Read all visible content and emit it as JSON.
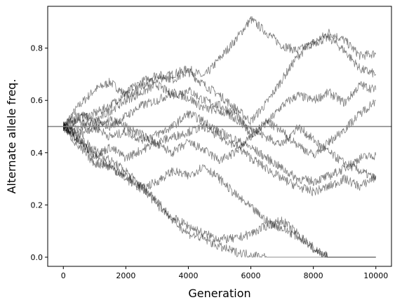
{
  "chart_data": {
    "type": "line",
    "title": "",
    "xlabel": "Generation",
    "ylabel": "Alternate allele freq.",
    "xlim": [
      -500,
      10500
    ],
    "ylim": [
      -0.035,
      0.96
    ],
    "xticks": [
      0,
      2000,
      4000,
      6000,
      8000,
      10000
    ],
    "xtick_labels": [
      "0",
      "2000",
      "4000",
      "6000",
      "8000",
      "10000"
    ],
    "yticks": [
      0.0,
      0.2,
      0.4,
      0.6,
      0.8
    ],
    "ytick_labels": [
      "0.0",
      "0.2",
      "0.4",
      "0.6",
      "0.8"
    ],
    "grid": false,
    "legend": "none",
    "reference_line": {
      "y": 0.5,
      "color": "#808080"
    },
    "series_color": "#000000",
    "series_opacity": 0.5,
    "series": [
      {
        "x": [
          0,
          500,
          1000,
          1500,
          2000,
          2500,
          3000,
          3500,
          4000,
          4500,
          5000,
          5500,
          6000,
          6500,
          7000,
          7500,
          8000,
          8500,
          9000,
          9500,
          10000
        ],
        "values": [
          0.5,
          0.58,
          0.64,
          0.67,
          0.62,
          0.65,
          0.68,
          0.7,
          0.72,
          0.69,
          0.76,
          0.83,
          0.91,
          0.86,
          0.81,
          0.79,
          0.82,
          0.86,
          0.83,
          0.77,
          0.78
        ]
      },
      {
        "x": [
          0,
          500,
          1000,
          1500,
          2000,
          2500,
          3000,
          3500,
          4000,
          4500,
          5000,
          5500,
          6000,
          6500,
          7000,
          7500,
          8000,
          8500,
          9000,
          9500,
          10000
        ],
        "values": [
          0.5,
          0.53,
          0.55,
          0.58,
          0.63,
          0.67,
          0.7,
          0.68,
          0.71,
          0.66,
          0.62,
          0.57,
          0.52,
          0.59,
          0.68,
          0.77,
          0.82,
          0.84,
          0.79,
          0.72,
          0.7
        ]
      },
      {
        "x": [
          0,
          500,
          1000,
          1500,
          2000,
          2500,
          3000,
          3500,
          4000,
          4500,
          5000,
          5500,
          6000,
          6500,
          7000,
          7500,
          8000,
          8500,
          9000,
          9500,
          10000
        ],
        "values": [
          0.5,
          0.55,
          0.52,
          0.56,
          0.6,
          0.63,
          0.66,
          0.62,
          0.64,
          0.6,
          0.58,
          0.55,
          0.47,
          0.51,
          0.58,
          0.62,
          0.6,
          0.63,
          0.59,
          0.66,
          0.64
        ]
      },
      {
        "x": [
          0,
          500,
          1000,
          1500,
          2000,
          2500,
          3000,
          3500,
          4000,
          4500,
          5000,
          5500,
          6000,
          6500,
          7000,
          7500,
          8000,
          8500,
          9000,
          9500,
          10000
        ],
        "values": [
          0.5,
          0.49,
          0.52,
          0.5,
          0.54,
          0.58,
          0.6,
          0.63,
          0.61,
          0.57,
          0.56,
          0.53,
          0.49,
          0.46,
          0.43,
          0.5,
          0.45,
          0.4,
          0.36,
          0.33,
          0.3
        ]
      },
      {
        "x": [
          0,
          500,
          1000,
          1500,
          2000,
          2500,
          3000,
          3500,
          4000,
          4500,
          5000,
          5500,
          6000,
          6500,
          7000,
          7500,
          8000,
          8500,
          9000,
          9500,
          10000
        ],
        "values": [
          0.5,
          0.47,
          0.5,
          0.46,
          0.48,
          0.45,
          0.47,
          0.5,
          0.55,
          0.52,
          0.48,
          0.45,
          0.42,
          0.38,
          0.34,
          0.3,
          0.29,
          0.31,
          0.34,
          0.38,
          0.39
        ]
      },
      {
        "x": [
          0,
          500,
          1000,
          1500,
          2000,
          2500,
          3000,
          3500,
          4000,
          4500,
          5000,
          5500,
          6000,
          6500,
          7000,
          7500,
          8000,
          8500,
          9000,
          9500,
          10000
        ],
        "values": [
          0.5,
          0.44,
          0.39,
          0.42,
          0.38,
          0.41,
          0.44,
          0.46,
          0.48,
          0.5,
          0.46,
          0.43,
          0.38,
          0.34,
          0.3,
          0.27,
          0.25,
          0.27,
          0.3,
          0.27,
          0.31
        ]
      },
      {
        "x": [
          0,
          500,
          1000,
          1500,
          2000,
          2500,
          3000,
          3500,
          4000,
          4500,
          5000,
          5500,
          6000,
          6500,
          7000,
          7500,
          8000,
          8500,
          9000,
          9500,
          10000
        ],
        "values": [
          0.5,
          0.42,
          0.36,
          0.35,
          0.3,
          0.26,
          0.29,
          0.33,
          0.31,
          0.35,
          0.3,
          0.24,
          0.19,
          0.14,
          0.11,
          0.08,
          0.04,
          0.0,
          0.0,
          0.0,
          0.0
        ]
      },
      {
        "x": [
          0,
          500,
          1000,
          1500,
          2000,
          2500,
          3000,
          3500,
          4000,
          4500,
          5000,
          5500,
          6000,
          6500,
          7000,
          7500,
          8000,
          8500,
          9000,
          9500,
          10000
        ],
        "values": [
          0.5,
          0.45,
          0.39,
          0.34,
          0.31,
          0.27,
          0.2,
          0.15,
          0.12,
          0.09,
          0.07,
          0.07,
          0.09,
          0.12,
          0.14,
          0.09,
          0.03,
          0.0,
          0.0,
          0.0,
          0.0
        ]
      },
      {
        "x": [
          0,
          500,
          1000,
          1500,
          2000,
          2500,
          3000,
          3500,
          4000,
          4500,
          5000,
          5500,
          6000,
          6500,
          7000,
          7500,
          8000,
          8500,
          9000,
          9500,
          10000
        ],
        "values": [
          0.5,
          0.46,
          0.41,
          0.37,
          0.33,
          0.27,
          0.22,
          0.14,
          0.09,
          0.07,
          0.04,
          0.02,
          0.01,
          0.0,
          0.0,
          0.0,
          0.0,
          0.0,
          0.0,
          0.0,
          0.0
        ]
      },
      {
        "x": [
          0,
          500,
          1000,
          1500,
          2000,
          2500,
          3000,
          3500,
          4000,
          4500,
          5000,
          5500,
          6000,
          6500,
          7000,
          7500,
          8000,
          8500,
          9000,
          9500,
          10000
        ],
        "values": [
          0.5,
          0.52,
          0.49,
          0.53,
          0.5,
          0.47,
          0.43,
          0.4,
          0.44,
          0.41,
          0.37,
          0.4,
          0.46,
          0.52,
          0.48,
          0.43,
          0.39,
          0.44,
          0.49,
          0.55,
          0.6
        ]
      }
    ]
  }
}
